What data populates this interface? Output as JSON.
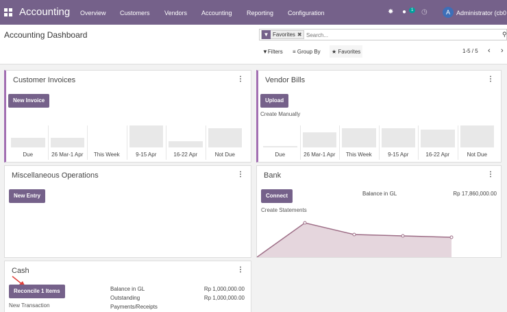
{
  "topbar": {
    "app_title": "Accounting",
    "menu": [
      "Overview",
      "Customers",
      "Vendors",
      "Accounting",
      "Reporting",
      "Configuration"
    ],
    "chat_badge": "1",
    "avatar_letter": "A",
    "user_name": "Administrator (cb0"
  },
  "controlpanel": {
    "page_title": "Accounting Dashboard",
    "facet_label": "Favorites",
    "search_placeholder": "Search...",
    "filters_label": "Filters",
    "groupby_label": "Group By",
    "favorites_label": "Favorites",
    "pager": "1-5 / 5"
  },
  "customer_invoices": {
    "title": "Customer Invoices",
    "button": "New Invoice",
    "chart_data": {
      "type": "bar",
      "categories": [
        "Due",
        "26 Mar-1 Apr",
        "This Week",
        "9-15 Apr",
        "16-22 Apr",
        "Not Due"
      ],
      "values": [
        0.44,
        0.44,
        0.0,
        1.0,
        0.28,
        0.88
      ]
    }
  },
  "vendor_bills": {
    "title": "Vendor Bills",
    "button": "Upload",
    "link": "Create Manually",
    "chart_data": {
      "type": "bar",
      "categories": [
        "Due",
        "26 Mar-1 Apr",
        "This Week",
        "9-15 Apr",
        "16-22 Apr",
        "Not Due"
      ],
      "values": [
        0.07,
        0.7,
        0.87,
        0.87,
        0.8,
        1.0
      ]
    }
  },
  "misc": {
    "title": "Miscellaneous Operations",
    "button": "New Entry"
  },
  "bank": {
    "title": "Bank",
    "button": "Connect",
    "balance_label": "Balance in GL",
    "balance_value": "Rp 17,860,000.00",
    "link": "Create Statements",
    "chart_data": {
      "type": "area",
      "values": [
        0.0,
        1.0,
        0.66,
        0.62,
        0.58
      ]
    }
  },
  "cash": {
    "title": "Cash",
    "button": "Reconcile 1 Items",
    "link": "New Transaction",
    "balance_label": "Balance in GL",
    "balance_value": "Rp 1,000,000.00",
    "outstanding_label_1": "Outstanding",
    "outstanding_label_2": "Payments/Receipts",
    "outstanding_value": "Rp 1,000,000.00"
  },
  "colors": {
    "brand": "#75618a",
    "card_accent": "#a26fb2",
    "bank_line": "#9d6d86",
    "bank_fill": "#e5d6dd",
    "annotation_arrow": "#e0403a"
  },
  "icons": [
    "apps-grid-icon",
    "bug-icon",
    "chat-icon",
    "clock-icon",
    "filter-icon",
    "close-icon",
    "search-icon",
    "list-icon",
    "star-icon",
    "chevron-left-icon",
    "chevron-right-icon",
    "kebab-menu-icon"
  ]
}
